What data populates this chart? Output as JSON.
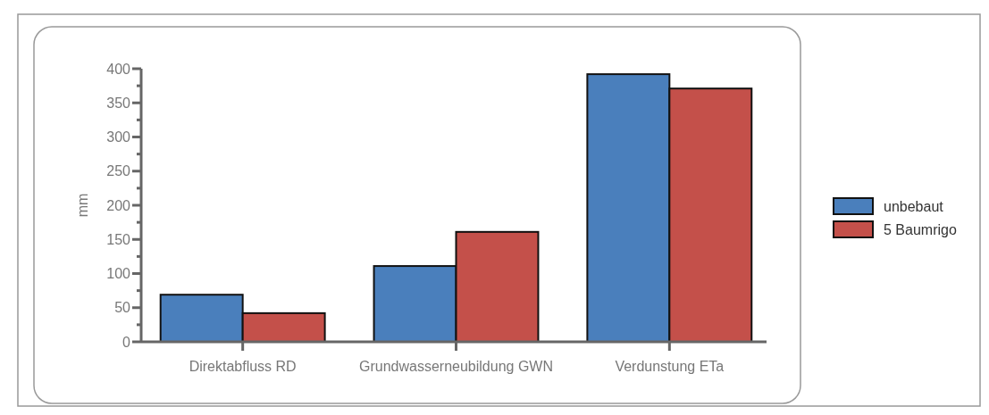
{
  "chart_data": {
    "type": "bar",
    "ylabel": "mm",
    "categories": [
      "Direktabfluss RD",
      "Grundwasserneubildung GWN",
      "Verdunstung ETa"
    ],
    "series": [
      {
        "name": "unbebaut",
        "color": "#4a7fbc",
        "values": [
          69,
          111,
          392
        ]
      },
      {
        "name": "5 Baumrigo",
        "color": "#c4504a",
        "values": [
          42,
          161,
          371
        ]
      }
    ],
    "ylim": [
      0,
      400
    ],
    "yticks": [
      0,
      {
        "value": 25,
        "label": null
      },
      50,
      {
        "value": 75,
        "label": null
      },
      100,
      {
        "value": 125,
        "label": null
      },
      150,
      {
        "value": 175,
        "label": null
      },
      200,
      {
        "value": 225,
        "label": null
      },
      250,
      {
        "value": 275,
        "label": null
      },
      300,
      {
        "value": 325,
        "label": null
      },
      350,
      {
        "value": 375,
        "label": null
      },
      400
    ],
    "grid": false,
    "legend": "right"
  }
}
